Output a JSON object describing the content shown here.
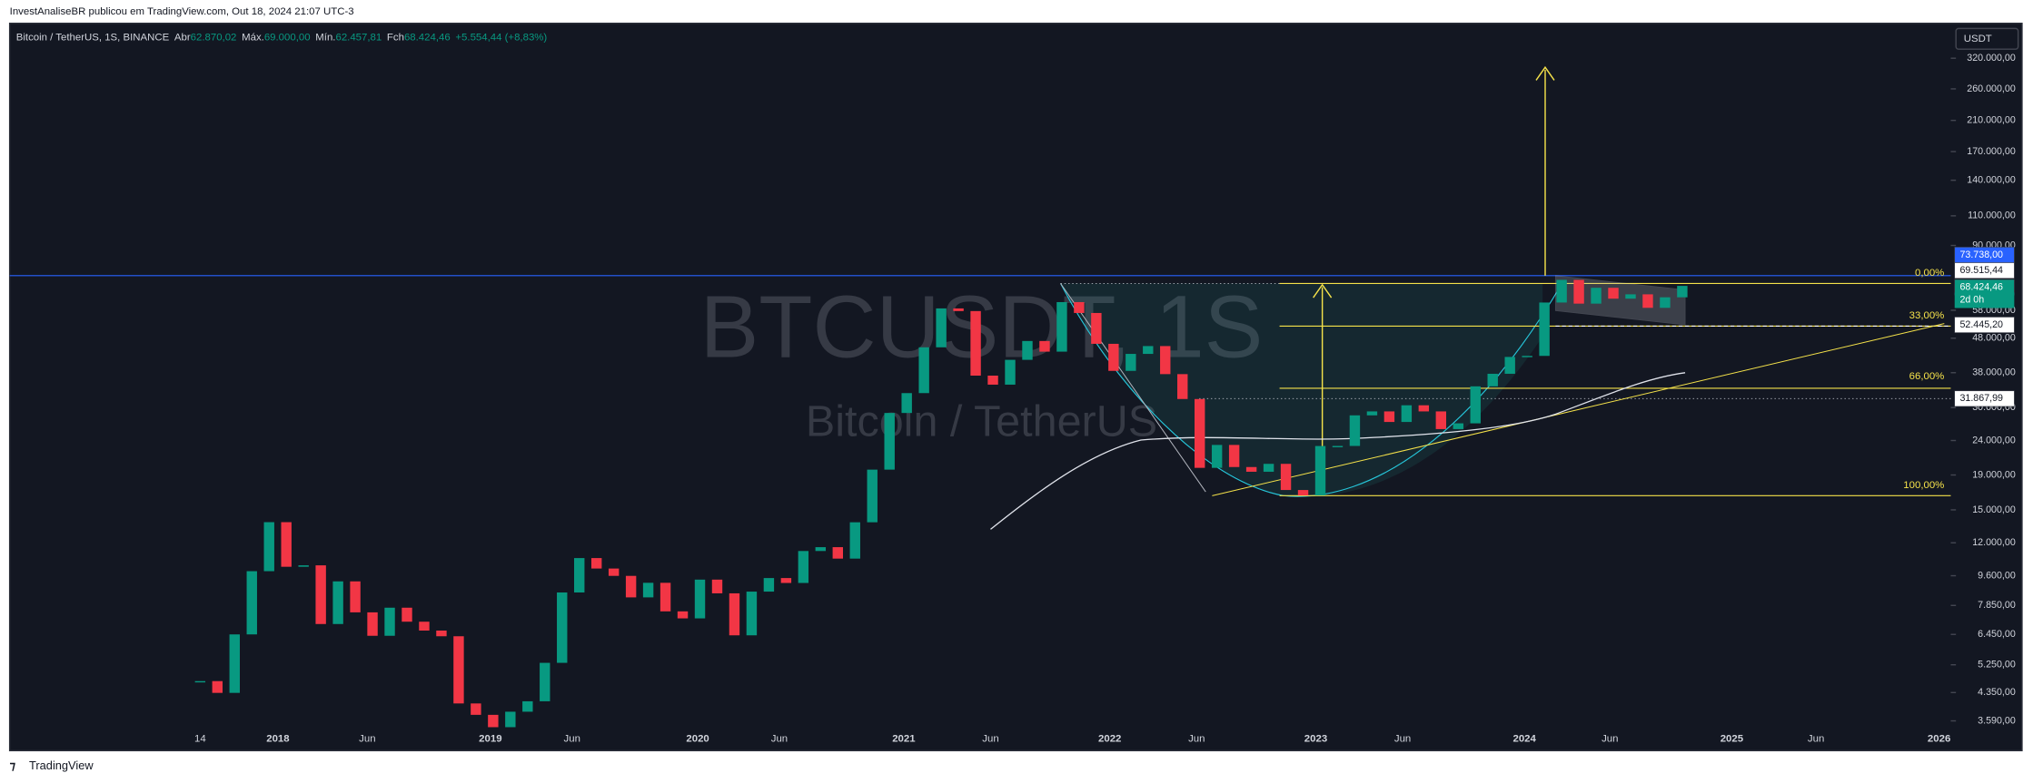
{
  "top_bar": {
    "text": "InvestAnaliseBR publicou em TradingView.com, Out 18, 2024 21:07 UTC-3"
  },
  "legend": {
    "symbol": "Bitcoin / TetherUS, 1S, BINANCE",
    "open_label": "Abr",
    "open": "62.870,02",
    "high_label": "Máx.",
    "high": "69.000,00",
    "low_label": "Mín.",
    "low": "62.457,81",
    "close_label": "Fch",
    "close": "68.424,46",
    "change": "+5.554,44 (+8,83%)"
  },
  "currency_button": "USDT",
  "watermark": {
    "ticker": "BTCUSDT, 1S",
    "name": "Bitcoin / TetherUS"
  },
  "price_axis": {
    "log_scale": true,
    "ticks": [
      {
        "value": 320000,
        "label": "320.000,00"
      },
      {
        "value": 260000,
        "label": "260.000,00"
      },
      {
        "value": 210000,
        "label": "210.000,00"
      },
      {
        "value": 170000,
        "label": "170.000,00"
      },
      {
        "value": 140000,
        "label": "140.000,00"
      },
      {
        "value": 110000,
        "label": "110.000,00"
      },
      {
        "value": 90000,
        "label": "90.000,00"
      },
      {
        "value": 58000,
        "label": "58.000,00"
      },
      {
        "value": 48000,
        "label": "48.000,00"
      },
      {
        "value": 38000,
        "label": "38.000,00"
      },
      {
        "value": 30000,
        "label": "30.000,00"
      },
      {
        "value": 24000,
        "label": "24.000,00"
      },
      {
        "value": 19000,
        "label": "19.000,00"
      },
      {
        "value": 15000,
        "label": "15.000,00"
      },
      {
        "value": 12000,
        "label": "12.000,00"
      },
      {
        "value": 9600,
        "label": "9.600,00"
      },
      {
        "value": 7850,
        "label": "7.850,00"
      },
      {
        "value": 6450,
        "label": "6.450,00"
      },
      {
        "value": 5250,
        "label": "5.250,00"
      },
      {
        "value": 4350,
        "label": "4.350,00"
      },
      {
        "value": 3590,
        "label": "3.590,00"
      }
    ]
  },
  "time_axis": {
    "labels": [
      "14",
      "2018",
      "Jun",
      "2019",
      "Jun",
      "2020",
      "Jun",
      "2021",
      "Jun",
      "2022",
      "Jun",
      "2023",
      "Jun",
      "2024",
      "Jun",
      "2025",
      "Jun",
      "2026"
    ]
  },
  "candles": {
    "closes": [
      4700,
      4340,
      6450,
      9900,
      13800,
      10200,
      10300,
      6920,
      9240,
      7490,
      6390,
      7730,
      7030,
      6620,
      6370,
      4040,
      3740,
      3440,
      3820,
      4100,
      5320,
      8570,
      10820,
      10080,
      9590,
      8290,
      9150,
      7540,
      7190,
      9350,
      8520,
      6410,
      8620,
      9450,
      9140,
      11350,
      11650,
      10780,
      13790,
      19700,
      28920,
      33090,
      45130,
      58740,
      57690,
      37250,
      35040,
      41460,
      47100,
      43820,
      61300,
      56950,
      46210,
      38470,
      43160,
      45510,
      37630,
      31790,
      19940,
      23290,
      20050,
      19420,
      20490,
      17160,
      16540,
      23120,
      23130,
      28460,
      29230,
      27210,
      30470,
      29230,
      25930,
      26960,
      34640,
      37720,
      42280,
      42580,
      61130,
      71280,
      60670,
      67540,
      62750,
      64620,
      58970,
      63330,
      68424
    ]
  },
  "price_tags": [
    {
      "value": 73738,
      "label": "73.738,00"
    },
    {
      "value": 69515.44,
      "label": "69.515,44"
    },
    {
      "value": 68424.46,
      "label": "68.424,46"
    },
    {
      "value": 52445.2,
      "label": "52.445,20"
    },
    {
      "value": 31867.99,
      "label": "31.867,99"
    }
  ],
  "countdown": "2d 0h",
  "fib_labels": [
    "0,00%",
    "33,00%",
    "66,00%",
    "100,00%"
  ],
  "footer": "TradingView"
}
